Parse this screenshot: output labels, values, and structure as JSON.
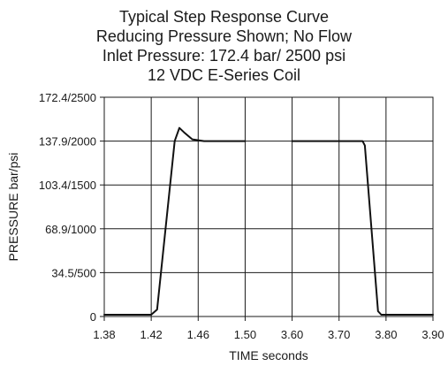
{
  "chart_data": {
    "type": "line",
    "title_lines": [
      "Typical Step Response Curve",
      "Reducing Pressure Shown; No Flow",
      "Inlet Pressure: 172.4 bar/ 2500 psi",
      "12 VDC E-Series Coil"
    ],
    "xlabel": "TIME  seconds",
    "ylabel": "PRESSURE  bar/psi",
    "x_ticks": [
      "1.38",
      "1.42",
      "1.46",
      "1.50",
      "3.60",
      "3.70",
      "3.80",
      "3.90"
    ],
    "y_ticks": [
      {
        "label": "0",
        "psi": 0
      },
      {
        "label": "34.5/500",
        "psi": 500
      },
      {
        "label": "68.9/1000",
        "psi": 1000
      },
      {
        "label": "103.4/1500",
        "psi": 1500
      },
      {
        "label": "137.9/2000",
        "psi": 2000
      },
      {
        "label": "172.4/2500",
        "psi": 2500
      }
    ],
    "ylim": [
      0,
      2500
    ],
    "grid": true,
    "x_axis_note": "discontinuous time axis: segment 1.38–1.50 s, segment 3.60–3.90 s",
    "series": [
      {
        "segments": [
          {
            "points": [
              {
                "x": 1.38,
                "y": 20
              },
              {
                "x": 1.42,
                "y": 20
              },
              {
                "x": 1.425,
                "y": 80
              },
              {
                "x": 1.44,
                "y": 2000
              },
              {
                "x": 1.444,
                "y": 2150
              },
              {
                "x": 1.448,
                "y": 2100
              },
              {
                "x": 1.455,
                "y": 2020
              },
              {
                "x": 1.465,
                "y": 2000
              },
              {
                "x": 1.5,
                "y": 2000
              }
            ]
          },
          {
            "points": [
              {
                "x": 3.6,
                "y": 2000
              },
              {
                "x": 3.75,
                "y": 2000
              },
              {
                "x": 3.755,
                "y": 1950
              },
              {
                "x": 3.783,
                "y": 60
              },
              {
                "x": 3.79,
                "y": 20
              },
              {
                "x": 3.9,
                "y": 20
              }
            ]
          }
        ]
      }
    ]
  }
}
